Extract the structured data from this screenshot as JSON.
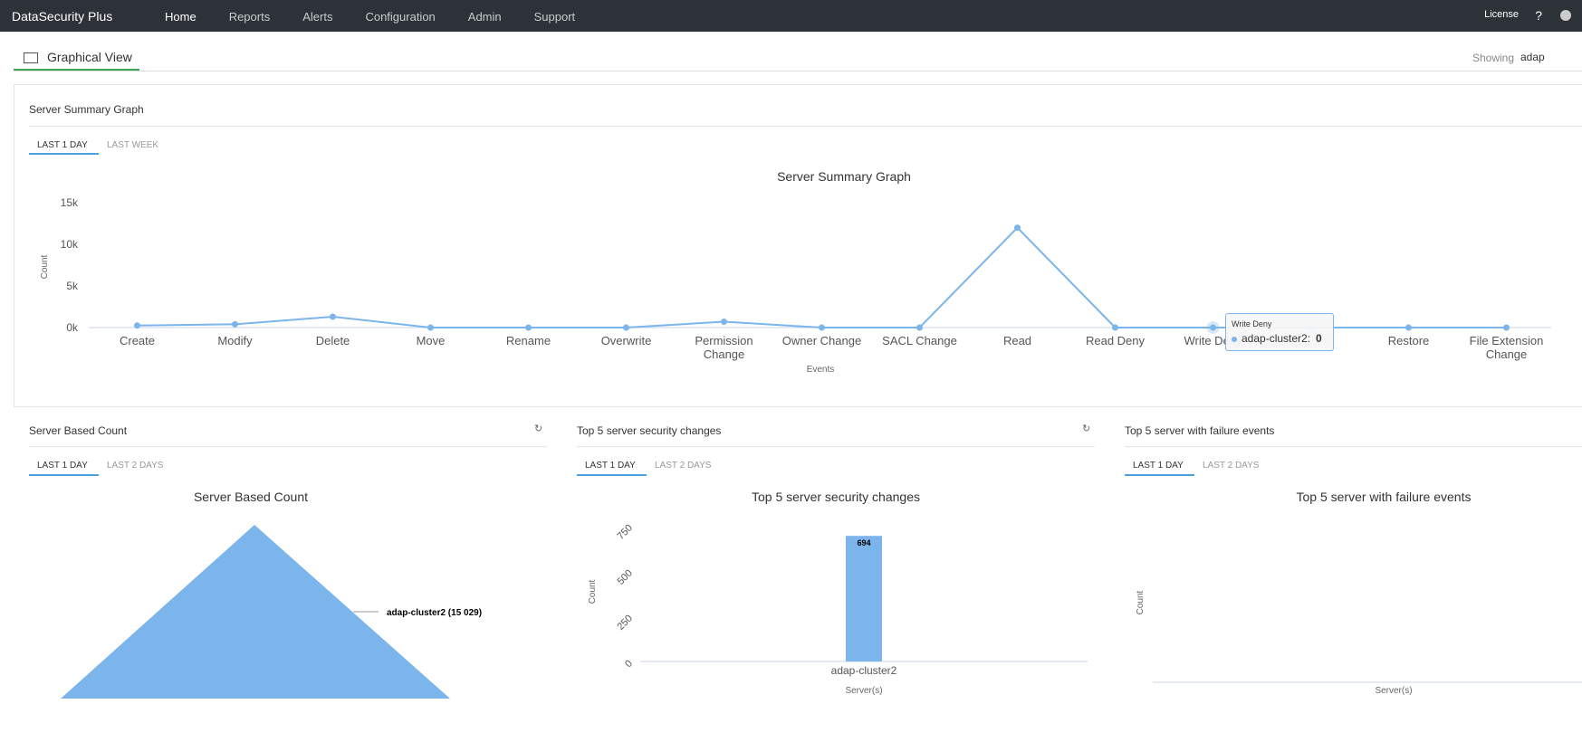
{
  "nav": {
    "logo": "DataSecurity Plus",
    "items": [
      "Home",
      "Reports",
      "Alerts",
      "Configuration",
      "Admin",
      "Support"
    ],
    "license": "License",
    "help": "?"
  },
  "header": {
    "title": "Graphical View",
    "showing_label": "Showing",
    "showing_value": "adap"
  },
  "panels": [
    {
      "title": "Server Summary Graph",
      "tabs": [
        "LAST 1 DAY",
        "LAST WEEK"
      ]
    },
    {
      "title": "Server Based Count",
      "tabs": [
        "LAST 1 DAY",
        "LAST 2 DAYS"
      ]
    },
    {
      "title": "Top 5 server security changes",
      "tabs": [
        "LAST 1 DAY",
        "LAST 2 DAYS"
      ]
    },
    {
      "title": "Top 5 server with failure events",
      "tabs": [
        "LAST 1 DAY",
        "LAST 2 DAYS"
      ]
    }
  ],
  "chart_data": [
    {
      "type": "line",
      "title": "Server Summary Graph",
      "xlabel": "Events",
      "ylabel": "Count",
      "categories": [
        "Create",
        "Modify",
        "Delete",
        "Move",
        "Rename",
        "Overwrite",
        "Permission Change",
        "Owner Change",
        "SACL Change",
        "Read",
        "Read Deny",
        "Write Deny",
        null,
        "Restore",
        "File Extension Change"
      ],
      "series": [
        {
          "name": "adap-cluster2",
          "color": "#7cb5ec",
          "values": [
            250,
            400,
            1300,
            0,
            0,
            0,
            700,
            0,
            0,
            12000,
            0,
            0,
            0,
            0,
            0
          ]
        }
      ],
      "ylim": [
        0,
        15000
      ],
      "yticks": [
        {
          "value": 0,
          "label": "0k"
        },
        {
          "value": 5000,
          "label": "5k"
        },
        {
          "value": 10000,
          "label": "10k"
        },
        {
          "value": 15000,
          "label": "15k"
        }
      ],
      "grid": false,
      "legend": false
    },
    {
      "type": "pie",
      "title": "Server Based Count",
      "categories": [
        "adap-cluster2"
      ],
      "values": [
        15029
      ],
      "value_labels": [
        "adap-cluster2 (15 029)"
      ],
      "color": "#7cb5ec"
    },
    {
      "type": "bar",
      "title": "Top 5 server security changes",
      "xlabel": "Server(s)",
      "ylabel": "Count",
      "categories": [
        "adap-cluster2"
      ],
      "values": [
        694
      ],
      "color": "#7cb5ec",
      "ylim": [
        0,
        750
      ],
      "yticks": [
        0,
        250,
        500,
        750
      ]
    },
    {
      "type": "bar",
      "title": "Top 5 server with failure events",
      "xlabel": "Server(s)",
      "ylabel": "Count",
      "categories": [],
      "values": []
    }
  ]
}
